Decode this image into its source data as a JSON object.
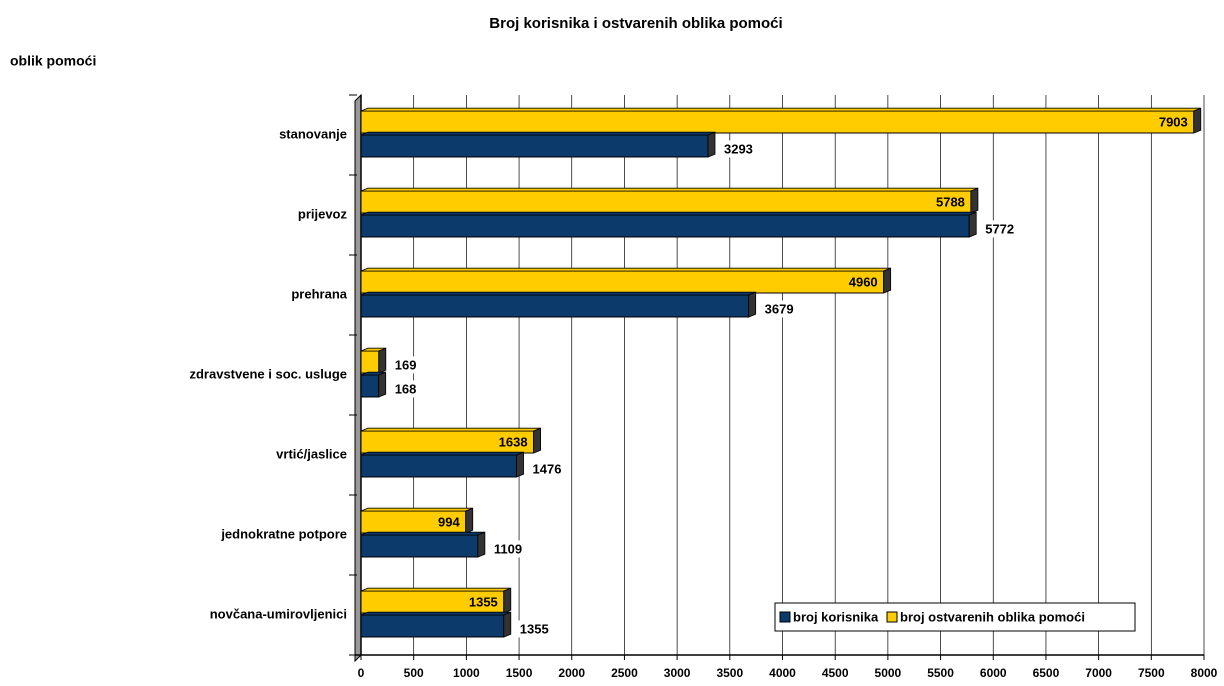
{
  "chart_data": {
    "type": "bar",
    "orientation": "horizontal",
    "title": "Broj korisnika i ostvarenih oblika pomoći",
    "y_label": "oblik pomoći",
    "categories": [
      "stanovanje",
      "prijevoz",
      "prehrana",
      "zdravstvene i soc. usluge",
      "vrtić/jaslice",
      "jednokratne potpore",
      "novčana-umirovljenici"
    ],
    "series": [
      {
        "name": "broj korisnika",
        "color": "#0b3a6b",
        "values": [
          3293,
          5772,
          3679,
          168,
          1476,
          1109,
          1355
        ]
      },
      {
        "name": "broj ostvarenih oblika pomoći",
        "color": "#ffcc00",
        "values": [
          7903,
          5788,
          4960,
          169,
          1638,
          994,
          1355
        ]
      }
    ],
    "xlim": [
      0,
      8000
    ],
    "xticks": [
      0,
      500,
      1000,
      1500,
      2000,
      2500,
      3000,
      3500,
      4000,
      4500,
      5000,
      5500,
      6000,
      6500,
      7000,
      7500,
      8000
    ],
    "grid": true,
    "legend": "lower right"
  }
}
